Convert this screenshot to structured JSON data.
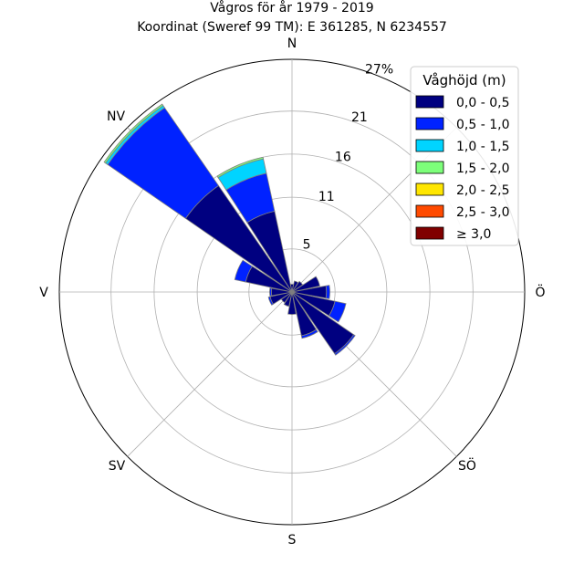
{
  "chart_data": {
    "type": "rose",
    "title_line1": "Vågros för år 1979 - 2019",
    "title_line2": "Koordinat (Sweref 99 TM): E 361285, N 6234557",
    "r_unit": "%",
    "r_max": 27,
    "r_ticks": [
      5,
      11,
      16,
      21,
      27
    ],
    "r_tick_labels": [
      "5",
      "11",
      "16",
      "21",
      "27%"
    ],
    "direction_labels": [
      "N",
      "NÖ",
      "Ö",
      "SÖ",
      "S",
      "SV",
      "V",
      "NV"
    ],
    "legend_title": "Våghöjd (m)",
    "legend_placement": "top-right",
    "bins": [
      {
        "label": "0,0 - 0,5",
        "color": "#000080"
      },
      {
        "label": "0,5 - 1,0",
        "color": "#0022ff"
      },
      {
        "label": "1,0 - 1,5",
        "color": "#00d4ff"
      },
      {
        "label": "1,5 - 2,0",
        "color": "#7dff7a"
      },
      {
        "label": "2,0 - 2,5",
        "color": "#ffe600"
      },
      {
        "label": "2,5 - 3,0",
        "color": "#ff4a00"
      },
      {
        "label": "≥ 3,0",
        "color": "#800000"
      }
    ],
    "sectors": [
      {
        "direction_deg": 0,
        "values": [
          0.9,
          0,
          0,
          0,
          0,
          0,
          0
        ]
      },
      {
        "direction_deg": 22.5,
        "values": [
          1.3,
          0,
          0,
          0,
          0,
          0,
          0
        ]
      },
      {
        "direction_deg": 45,
        "values": [
          1.5,
          0,
          0,
          0,
          0,
          0,
          0
        ]
      },
      {
        "direction_deg": 67.5,
        "values": [
          3.3,
          0,
          0,
          0,
          0,
          0,
          0
        ]
      },
      {
        "direction_deg": 90,
        "values": [
          4.0,
          0.4,
          0,
          0,
          0,
          0,
          0
        ]
      },
      {
        "direction_deg": 112.5,
        "values": [
          5.1,
          1.3,
          0,
          0,
          0,
          0,
          0
        ]
      },
      {
        "direction_deg": 135,
        "values": [
          8.7,
          0.2,
          0,
          0,
          0,
          0,
          0
        ]
      },
      {
        "direction_deg": 157.5,
        "values": [
          5.2,
          0.3,
          0,
          0,
          0,
          0,
          0
        ]
      },
      {
        "direction_deg": 180,
        "values": [
          2.6,
          0,
          0,
          0,
          0,
          0,
          0
        ]
      },
      {
        "direction_deg": 202.5,
        "values": [
          1.7,
          0,
          0,
          0,
          0,
          0,
          0
        ]
      },
      {
        "direction_deg": 225,
        "values": [
          1.5,
          0,
          0,
          0,
          0,
          0,
          0
        ]
      },
      {
        "direction_deg": 247.5,
        "values": [
          2.6,
          0.2,
          0,
          0,
          0,
          0,
          0
        ]
      },
      {
        "direction_deg": 270,
        "values": [
          2.4,
          0.2,
          0,
          0,
          0,
          0,
          0
        ]
      },
      {
        "direction_deg": 292.5,
        "values": [
          5.5,
          1.3,
          0,
          0,
          0,
          0,
          0
        ]
      },
      {
        "direction_deg": 315,
        "values": [
          15.0,
          11.0,
          0.3,
          0.2,
          0,
          0,
          0
        ]
      },
      {
        "direction_deg": 337.5,
        "values": [
          9.6,
          4.5,
          1.7,
          0.2,
          0,
          0,
          0
        ]
      }
    ]
  }
}
